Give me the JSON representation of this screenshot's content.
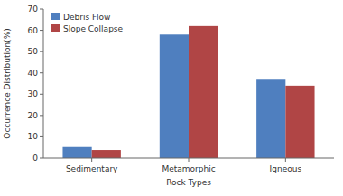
{
  "chart_data": {
    "type": "bar",
    "categories": [
      "Sedimentary",
      "Metamorphic",
      "Igneous"
    ],
    "series": [
      {
        "name": "Debris Flow",
        "color": "#4f7fbf",
        "values": [
          5.2,
          58.0,
          36.8
        ]
      },
      {
        "name": "Slope Collapse",
        "color": "#b04545",
        "values": [
          3.8,
          62.0,
          34.0
        ]
      }
    ],
    "ylabel": "Occurrence Distribution(%)",
    "xlabel": "Rock Types",
    "ylim": [
      0,
      70
    ],
    "yticks": [
      0,
      10,
      20,
      30,
      40,
      50,
      60,
      70
    ],
    "legend": "upper left"
  }
}
